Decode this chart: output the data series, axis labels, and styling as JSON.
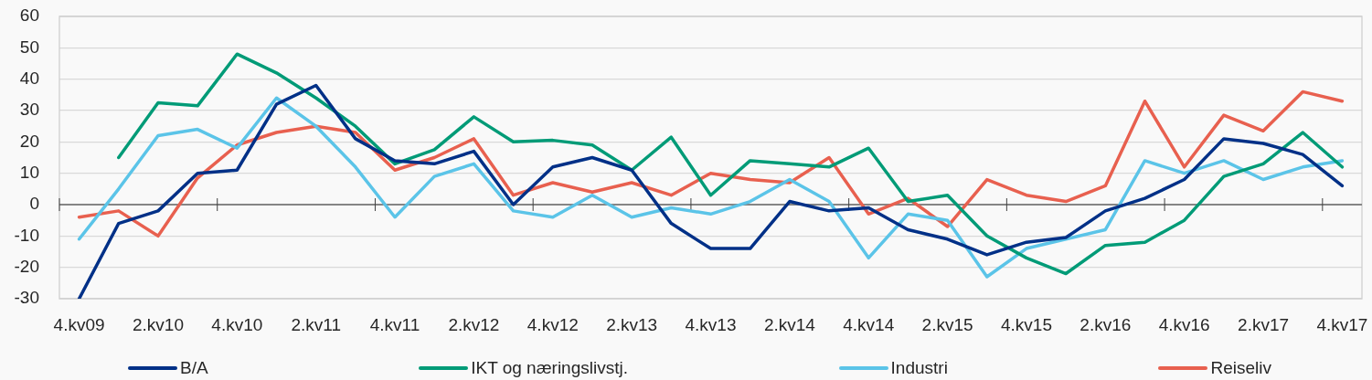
{
  "chart_data": {
    "type": "line",
    "categories": [
      "4.kv09",
      null,
      "2.kv10",
      null,
      "4.kv10",
      null,
      "2.kv11",
      null,
      "4.kv11",
      null,
      "2.kv12",
      null,
      "4.kv12",
      null,
      "2.kv13",
      null,
      "4.kv13",
      null,
      "2.kv14",
      null,
      "4.kv14",
      null,
      "2.kv15",
      null,
      "4.kv15",
      null,
      "2.kv16",
      null,
      "4.kv16",
      null,
      "2.kv17",
      null,
      "4.kv17"
    ],
    "series": [
      {
        "name": "B/A",
        "color": "#003087",
        "values": [
          -30,
          -6,
          -2,
          10,
          11,
          32,
          38,
          21,
          14,
          13,
          17,
          0,
          12,
          15,
          11,
          -6,
          -14,
          -14,
          1,
          -2,
          -1,
          -8,
          -11,
          -16,
          -12,
          -10.5,
          -2,
          2,
          8,
          21,
          19.5,
          16,
          6
        ]
      },
      {
        "name": "IKT og næringslivstj.",
        "color": "#009b77",
        "values": [
          null,
          15,
          32.5,
          31.5,
          48,
          42,
          34,
          25,
          13,
          17.5,
          28,
          20,
          20.5,
          19,
          11,
          21.5,
          3,
          14,
          13,
          12,
          18,
          1,
          3,
          -10,
          -17,
          -22,
          -13,
          -12,
          -5,
          9,
          13,
          23,
          12
        ]
      },
      {
        "name": "Industri",
        "color": "#5bc4e8",
        "values": [
          -11,
          5,
          22,
          24,
          18,
          34,
          25,
          12,
          -4,
          9,
          13,
          -2,
          -4,
          3,
          -4,
          -1,
          -3,
          1,
          8,
          1,
          -17,
          -3,
          -5,
          -23,
          -14,
          -11,
          -8,
          14,
          10,
          14,
          8,
          12,
          14
        ]
      },
      {
        "name": "Reiseliv",
        "color": "#e8604f",
        "values": [
          -4,
          -2,
          -10,
          8.5,
          19,
          23,
          25,
          23,
          11,
          15,
          21,
          3,
          7,
          4,
          7,
          3,
          10,
          8,
          7,
          15,
          -3,
          2,
          -7,
          8,
          3,
          1,
          6,
          33,
          12,
          28.5,
          23.5,
          36,
          33
        ]
      }
    ],
    "ylim": [
      -30,
      60
    ],
    "yticks": [
      -30,
      -20,
      -10,
      0,
      10,
      20,
      30,
      40,
      50,
      60
    ],
    "grid": "y",
    "legend": "bottom",
    "marker": "none",
    "line_style": "solid"
  }
}
